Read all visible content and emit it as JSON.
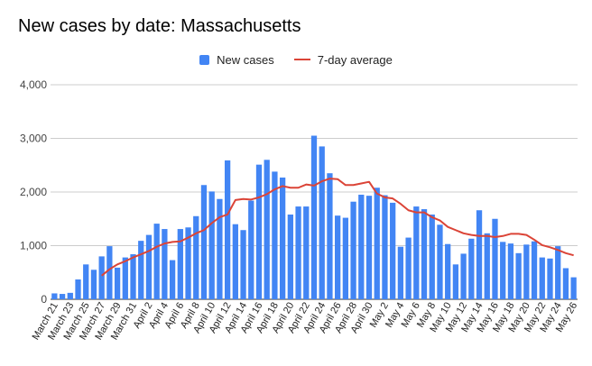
{
  "chart_data": {
    "type": "bar",
    "title": "New cases by date: Massachusetts",
    "xlabel": "",
    "ylabel": "",
    "ylim": [
      0,
      4000
    ],
    "yticks": [
      "0",
      "1,000",
      "2,000",
      "3,000",
      "4,000"
    ],
    "grid": true,
    "legend_position": "top-center",
    "colors": {
      "bar": "#4285f4",
      "line": "#db4437"
    },
    "categories": [
      "March 21",
      "March 22",
      "March 23",
      "March 24",
      "March 25",
      "March 26",
      "March 27",
      "March 28",
      "March 29",
      "March 30",
      "March 31",
      "April 1",
      "April 2",
      "April 3",
      "April 4",
      "April 5",
      "April 6",
      "April 7",
      "April 8",
      "April 9",
      "April 10",
      "April 11",
      "April 12",
      "April 13",
      "April 14",
      "April 15",
      "April 16",
      "April 17",
      "April 18",
      "April 19",
      "April 20",
      "April 21",
      "April 22",
      "April 23",
      "April 24",
      "April 25",
      "April 26",
      "April 27",
      "April 28",
      "April 29",
      "April 30",
      "May 1",
      "May 2",
      "May 3",
      "May 4",
      "May 5",
      "May 6",
      "May 7",
      "May 8",
      "May 9",
      "May 10",
      "May 11",
      "May 12",
      "May 13",
      "May 14",
      "May 15",
      "May 16",
      "May 17",
      "May 18",
      "May 19",
      "May 20",
      "May 21",
      "May 22",
      "May 23",
      "May 24",
      "May 25",
      "May 26"
    ],
    "tick_labels": [
      "March 21",
      "March 23",
      "March 25",
      "March 27",
      "March 29",
      "March 31",
      "April 2",
      "April 4",
      "April 6",
      "April 8",
      "April 10",
      "April 12",
      "April 14",
      "April 16",
      "April 18",
      "April 20",
      "April 22",
      "April 24",
      "April 26",
      "April 28",
      "April 30",
      "May 2",
      "May 4",
      "May 6",
      "May 8",
      "May 10",
      "May 12",
      "May 14",
      "May 16",
      "May 18",
      "May 20",
      "May 22",
      "May 24",
      "May 26"
    ],
    "series": [
      {
        "name": "New cases",
        "type": "bar",
        "values": [
          110,
          100,
          120,
          370,
          650,
          550,
          800,
          990,
          590,
          780,
          840,
          1090,
          1200,
          1410,
          1310,
          730,
          1310,
          1340,
          1550,
          2130,
          2010,
          1870,
          2590,
          1400,
          1290,
          1840,
          2510,
          2600,
          2380,
          2270,
          1580,
          1730,
          1730,
          3050,
          2850,
          2350,
          1560,
          1520,
          1820,
          1950,
          1930,
          2080,
          1940,
          1800,
          980,
          1150,
          1730,
          1680,
          1580,
          1390,
          1030,
          650,
          850,
          1130,
          1660,
          1230,
          1500,
          1070,
          1040,
          860,
          1020,
          1080,
          780,
          760,
          990,
          580,
          410
        ]
      },
      {
        "name": "7-day average",
        "type": "line",
        "values": [
          null,
          null,
          null,
          null,
          null,
          null,
          440,
          560,
          650,
          710,
          780,
          840,
          900,
          980,
          1040,
          1070,
          1080,
          1150,
          1230,
          1290,
          1420,
          1530,
          1580,
          1850,
          1870,
          1860,
          1900,
          1960,
          2050,
          2110,
          2080,
          2080,
          2140,
          2120,
          2200,
          2250,
          2240,
          2130,
          2130,
          2160,
          2190,
          1970,
          1900,
          1880,
          1780,
          1660,
          1620,
          1620,
          1530,
          1470,
          1350,
          1290,
          1230,
          1200,
          1180,
          1180,
          1160,
          1180,
          1220,
          1220,
          1200,
          1110,
          1010,
          970,
          920,
          860,
          820
        ]
      }
    ]
  }
}
